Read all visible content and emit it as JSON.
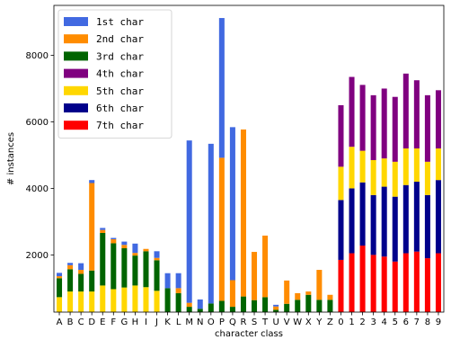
{
  "chart_data": {
    "type": "bar",
    "stacked": true,
    "xlabel": "character class",
    "ylabel": "# instances",
    "ylim": [
      280,
      9500
    ],
    "yticks": [
      2000,
      4000,
      6000,
      8000
    ],
    "legend_position": "top-left",
    "grid": false,
    "categories": [
      "A",
      "B",
      "C",
      "D",
      "E",
      "F",
      "G",
      "H",
      "I",
      "J",
      "K",
      "L",
      "M",
      "N",
      "O",
      "P",
      "Q",
      "R",
      "S",
      "T",
      "U",
      "V",
      "W",
      "X",
      "Y",
      "Z",
      "0",
      "1",
      "2",
      "3",
      "4",
      "5",
      "6",
      "7",
      "8",
      "9"
    ],
    "series": [
      {
        "name": "7th char",
        "color": "#ff0000",
        "values": [
          0,
          0,
          0,
          0,
          0,
          0,
          0,
          0,
          0,
          0,
          0,
          0,
          0,
          0,
          0,
          0,
          0,
          0,
          0,
          0,
          0,
          0,
          0,
          0,
          0,
          0,
          1850,
          2050,
          2280,
          2000,
          1950,
          1800,
          2050,
          2100,
          1900,
          2050
        ]
      },
      {
        "name": "6th char",
        "color": "#00008b",
        "values": [
          0,
          0,
          0,
          0,
          0,
          0,
          0,
          0,
          0,
          0,
          0,
          0,
          0,
          0,
          0,
          0,
          0,
          0,
          0,
          0,
          0,
          0,
          0,
          0,
          0,
          0,
          1800,
          1950,
          1900,
          1800,
          2100,
          1950,
          2050,
          2100,
          1900,
          2200
        ]
      },
      {
        "name": "5th char",
        "color": "#ffd700",
        "values": [
          730,
          900,
          900,
          900,
          1080,
          970,
          1020,
          1080,
          1030,
          920,
          100,
          130,
          60,
          60,
          60,
          0,
          0,
          0,
          0,
          0,
          0,
          0,
          0,
          0,
          0,
          0,
          1000,
          1250,
          950,
          1050,
          850,
          1050,
          1100,
          1000,
          1000,
          950
        ]
      },
      {
        "name": "4th char",
        "color": "#800080",
        "values": [
          0,
          0,
          0,
          0,
          0,
          0,
          0,
          0,
          0,
          0,
          0,
          0,
          0,
          0,
          0,
          0,
          0,
          0,
          0,
          0,
          0,
          0,
          0,
          0,
          0,
          0,
          1850,
          2100,
          1980,
          1950,
          2100,
          1950,
          2250,
          2050,
          2000,
          1750
        ]
      },
      {
        "name": "3rd char",
        "color": "#006400",
        "values": [
          570,
          670,
          530,
          630,
          1580,
          1380,
          1180,
          900,
          1080,
          920,
          900,
          720,
          380,
          320,
          480,
          620,
          440,
          750,
          640,
          730,
          350,
          530,
          650,
          800,
          650,
          650,
          0,
          0,
          0,
          0,
          0,
          0,
          0,
          0,
          0,
          0
        ]
      },
      {
        "name": "2nd char",
        "color": "#ff8c00",
        "values": [
          60,
          120,
          120,
          2630,
          90,
          120,
          100,
          80,
          70,
          70,
          0,
          150,
          120,
          0,
          0,
          4300,
          800,
          5020,
          1450,
          1850,
          100,
          700,
          200,
          100,
          900,
          150,
          0,
          0,
          0,
          0,
          0,
          0,
          0,
          0,
          0,
          0
        ]
      },
      {
        "name": "1st char",
        "color": "#4169e1",
        "values": [
          100,
          70,
          200,
          90,
          60,
          40,
          100,
          280,
          0,
          200,
          450,
          450,
          4880,
          280,
          4800,
          4200,
          4600,
          0,
          0,
          0,
          50,
          0,
          0,
          0,
          0,
          0,
          0,
          0,
          0,
          0,
          0,
          0,
          0,
          0,
          0,
          0
        ]
      }
    ],
    "legend_order": [
      "1st char",
      "2nd char",
      "3rd char",
      "4th char",
      "5th char",
      "6th char",
      "7th char"
    ]
  }
}
